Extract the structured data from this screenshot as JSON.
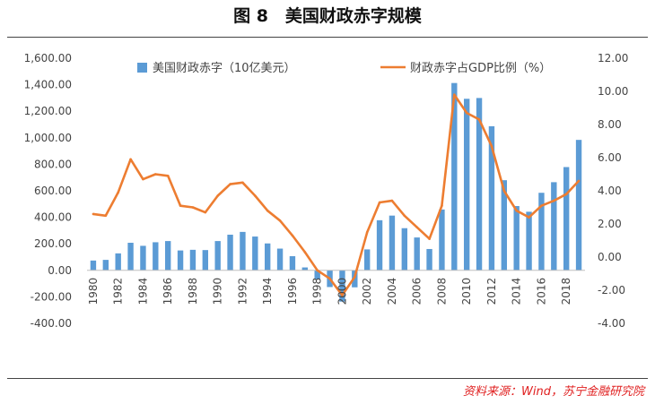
{
  "figure": {
    "title": "图 8　美国财政赤字规模",
    "source": "资料来源：Wind，苏宁金融研究院"
  },
  "chart_data": {
    "type": "bar+line",
    "title": "美国财政赤字规模",
    "categories": [
      1980,
      1981,
      1982,
      1983,
      1984,
      1985,
      1986,
      1987,
      1988,
      1989,
      1990,
      1991,
      1992,
      1993,
      1994,
      1995,
      1996,
      1997,
      1998,
      1999,
      2000,
      2001,
      2002,
      2003,
      2004,
      2005,
      2006,
      2007,
      2008,
      2009,
      2010,
      2011,
      2012,
      2013,
      2014,
      2015,
      2016,
      2017,
      2018,
      2019
    ],
    "x_tick_labels": [
      "1980",
      "1982",
      "1984",
      "1986",
      "1988",
      "1990",
      "1992",
      "1994",
      "1996",
      "1998",
      "2000",
      "2002",
      "2004",
      "2006",
      "2008",
      "2010",
      "2012",
      "2014",
      "2016",
      "2018"
    ],
    "series": [
      {
        "name": "美国财政赤字（10亿美元）",
        "type": "bar",
        "axis": "left",
        "color": "#5b9bd5",
        "values": [
          74,
          79,
          128,
          208,
          185,
          212,
          221,
          150,
          155,
          153,
          221,
          269,
          290,
          255,
          203,
          164,
          107,
          22,
          -69,
          -126,
          -236,
          -128,
          158,
          378,
          413,
          318,
          248,
          161,
          459,
          1413,
          1294,
          1300,
          1087,
          680,
          485,
          442,
          585,
          665,
          779,
          984
        ]
      },
      {
        "name": "财政赤字占GDP比例（%）",
        "type": "line",
        "axis": "right",
        "color": "#ed7d31",
        "values": [
          2.6,
          2.5,
          3.9,
          5.9,
          4.7,
          5.0,
          4.9,
          3.1,
          3.0,
          2.7,
          3.7,
          4.4,
          4.5,
          3.7,
          2.8,
          2.2,
          1.3,
          0.3,
          -0.8,
          -1.3,
          -2.3,
          -1.2,
          1.5,
          3.3,
          3.4,
          2.5,
          1.8,
          1.1,
          3.1,
          9.8,
          8.7,
          8.3,
          6.7,
          4.0,
          2.8,
          2.4,
          3.1,
          3.4,
          3.8,
          4.6
        ]
      }
    ],
    "left_axis": {
      "min": -400,
      "max": 1600,
      "step": 200,
      "tick_labels": [
        "-400.00",
        "-200.00",
        "0.00",
        "200.00",
        "400.00",
        "600.00",
        "800.00",
        "1,000.00",
        "1,200.00",
        "1,400.00",
        "1,600.00"
      ]
    },
    "right_axis": {
      "min": -4,
      "max": 12,
      "step": 2,
      "tick_labels": [
        "-4.00",
        "-2.00",
        "0.00",
        "2.00",
        "4.00",
        "6.00",
        "8.00",
        "10.00",
        "12.00"
      ]
    },
    "legend_position": "top",
    "grid": false
  }
}
